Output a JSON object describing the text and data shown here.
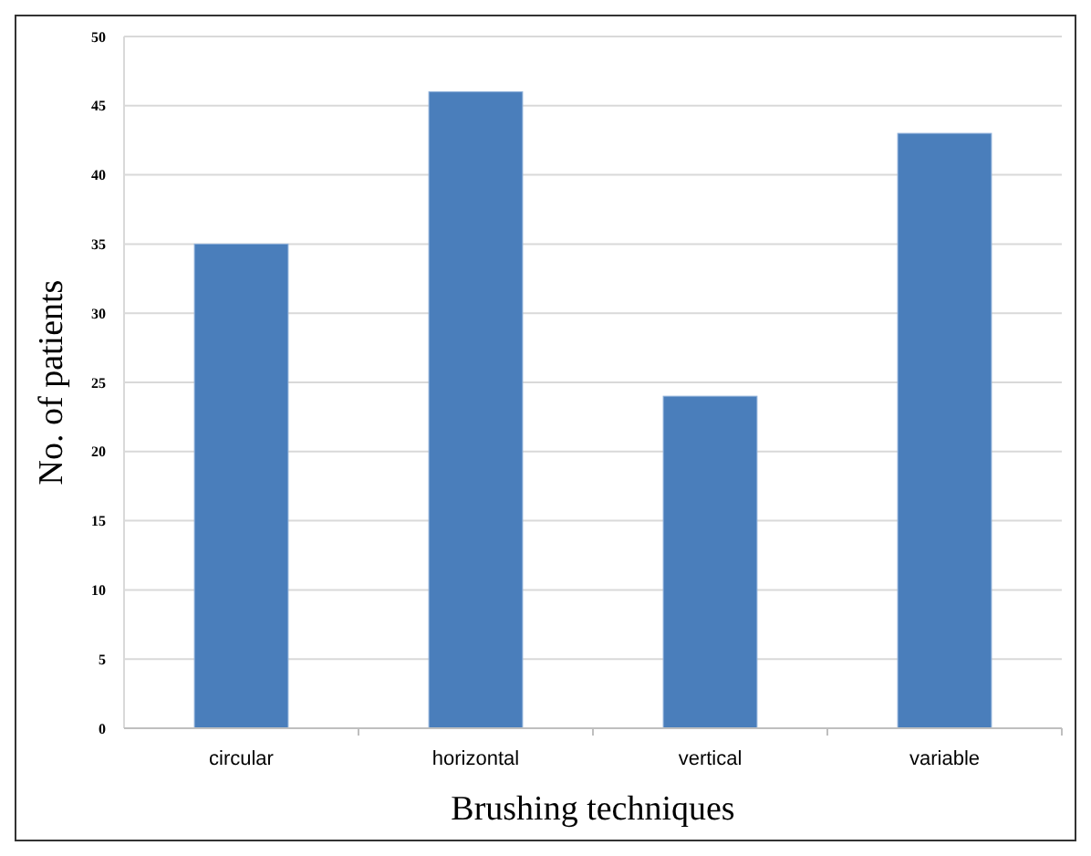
{
  "chart_data": {
    "type": "bar",
    "xlabel": "Brushing techniques",
    "ylabel": "No. of patients",
    "categories": [
      "circular",
      "horizontal",
      "vertical",
      "variable"
    ],
    "values": [
      35,
      46,
      24,
      43
    ],
    "color": "#4a7ebb",
    "ylim": [
      0,
      50
    ],
    "yticks": [
      0,
      5,
      10,
      15,
      20,
      25,
      30,
      35,
      40,
      45,
      50
    ],
    "grid": "y"
  }
}
